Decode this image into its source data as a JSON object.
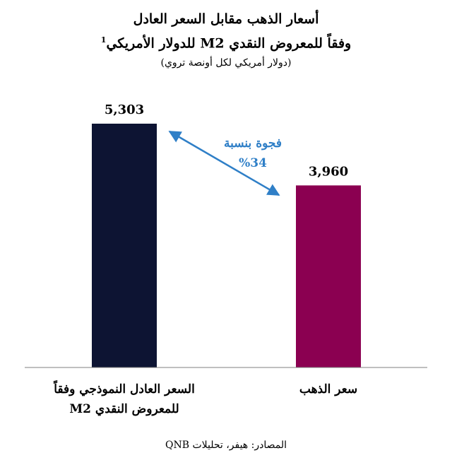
{
  "chart_data": {
    "type": "bar",
    "title_line1": "أسعار الذهب مقابل السعر العادل",
    "title_line2": "وفقاً للمعروض النقدي M2 للدولار الأمريكي",
    "title_superscript": "1",
    "subtitle": "(دولار أمريكي لكل أونصة تروي)",
    "categories": [
      {
        "line1": "السعر العادل النموذجي وفقاً",
        "line2": "للمعروض النقدي M2"
      },
      {
        "line1": "سعر الذهب",
        "line2": ""
      }
    ],
    "values": [
      5303,
      3960
    ],
    "value_labels": [
      "5,303",
      "3,960"
    ],
    "colors": [
      "#0d1433",
      "#8b0051"
    ],
    "ylim": [
      0,
      5303
    ],
    "grid": false,
    "annotation": {
      "line1": "فجوة بنسبة",
      "line2": "%34",
      "color": "#2f7fc7"
    }
  },
  "source": "المصادر: هيفر، تحليلات QNB"
}
